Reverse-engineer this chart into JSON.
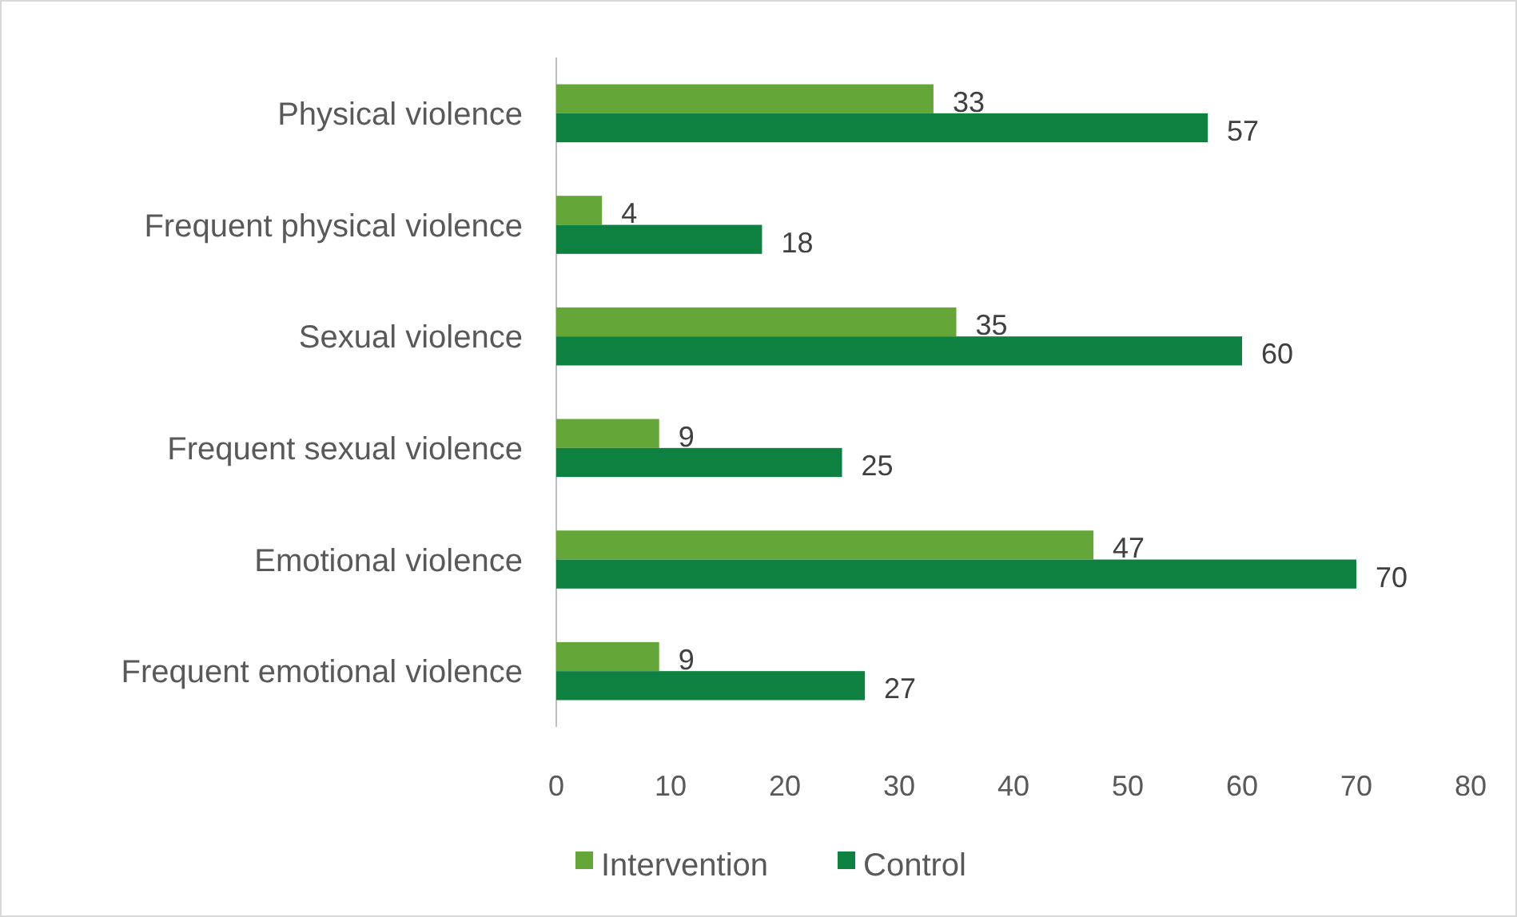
{
  "chart_data": {
    "type": "bar",
    "orientation": "horizontal",
    "categories": [
      "Physical violence",
      "Frequent physical violence",
      "Sexual violence",
      "Frequent sexual violence",
      "Emotional violence",
      "Frequent emotional violence"
    ],
    "series": [
      {
        "name": "Intervention",
        "color": "#64a637",
        "values": [
          33,
          4,
          35,
          9,
          47,
          9
        ]
      },
      {
        "name": "Control",
        "color": "#0e8040",
        "values": [
          57,
          18,
          60,
          25,
          70,
          27
        ]
      }
    ],
    "xlim": [
      0,
      80
    ],
    "xticks": [
      0,
      10,
      20,
      30,
      40,
      50,
      60,
      70,
      80
    ],
    "grid": false,
    "legend": "bottom",
    "data_labels": true
  }
}
